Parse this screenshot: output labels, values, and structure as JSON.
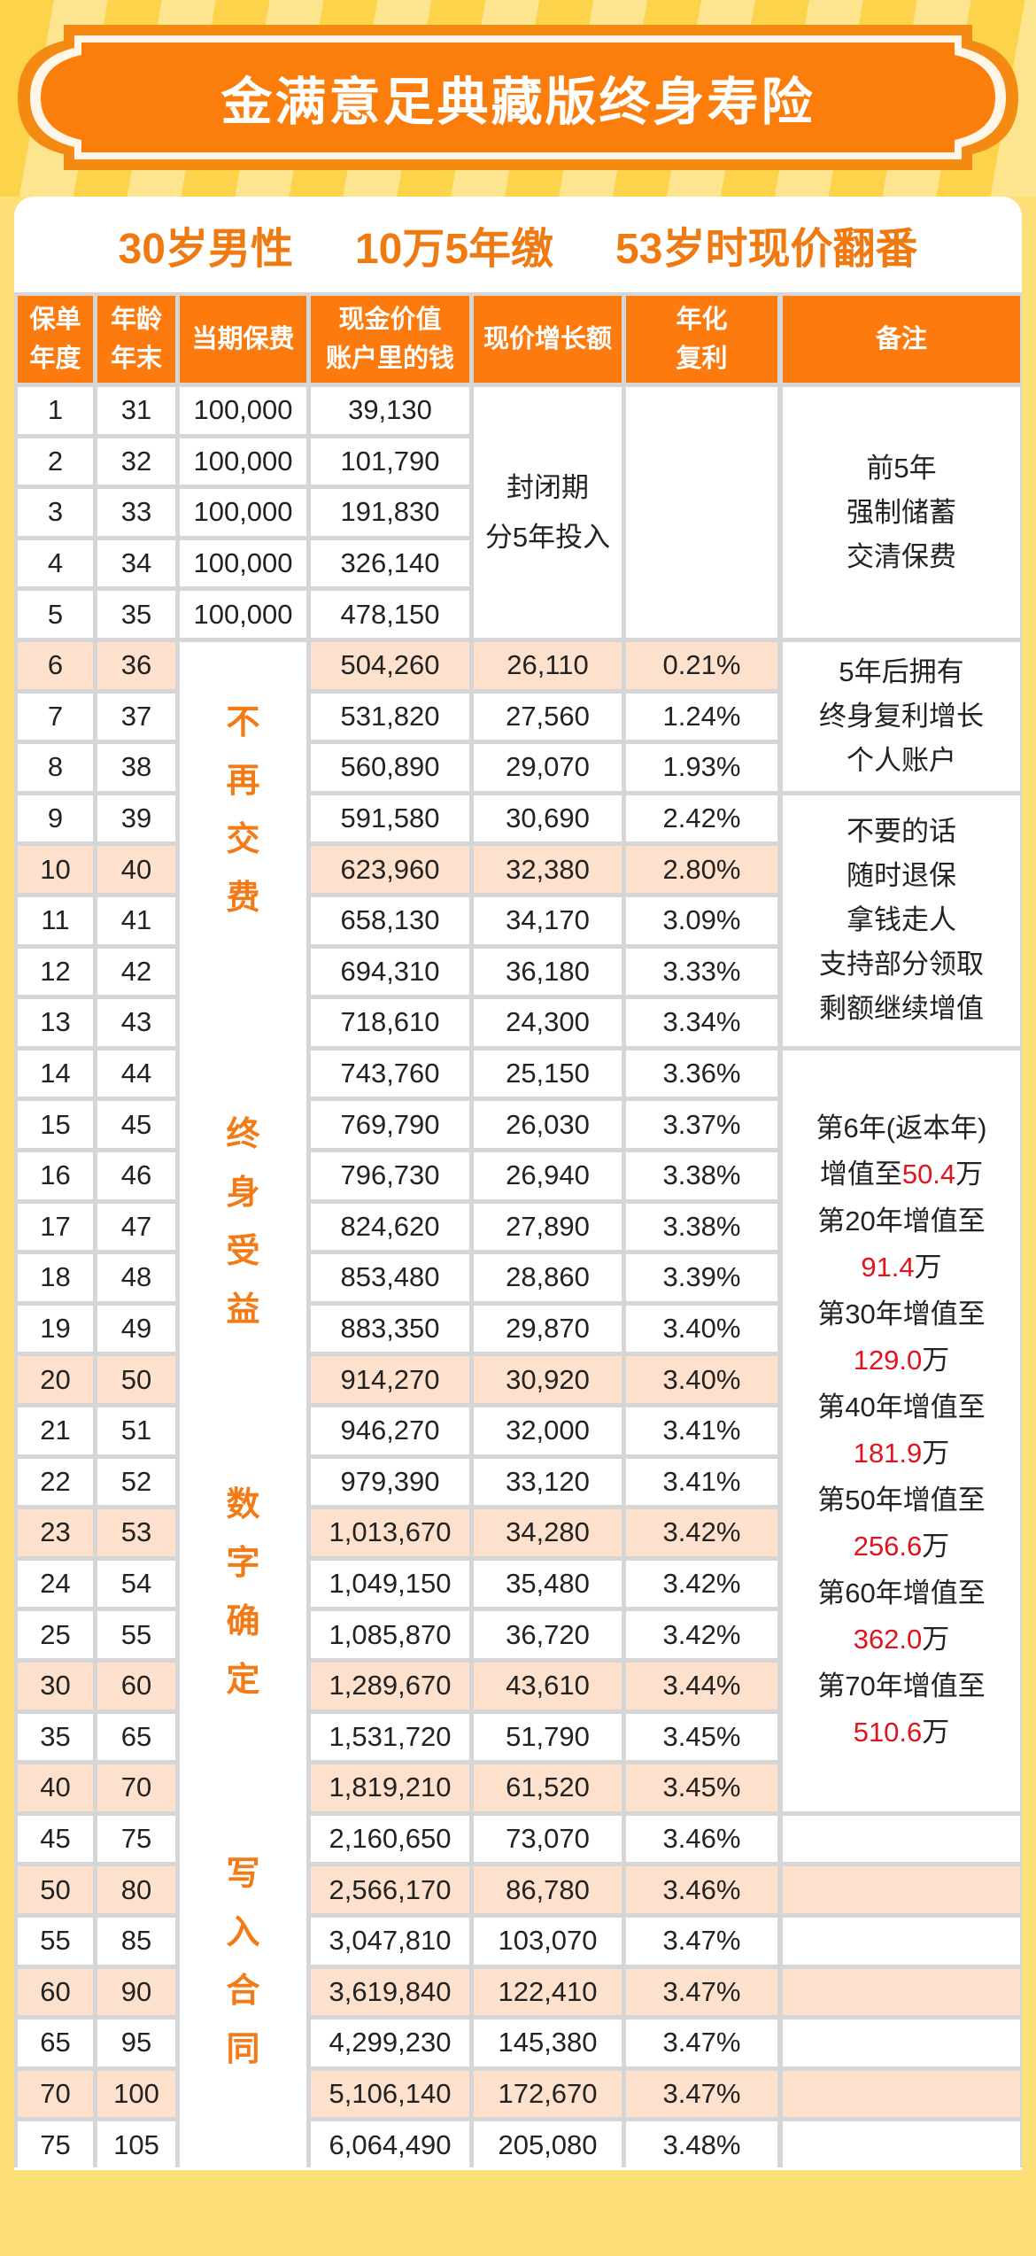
{
  "banner": {
    "title": "金满意足典藏版终身寿险"
  },
  "subtitle": {
    "items": [
      "30岁男性",
      "10万5年缴",
      "53岁时现价翻番"
    ]
  },
  "colors": {
    "accent": "#fd7a0e",
    "highlight_row": "#fde1cc",
    "text_orange": "#f07a12",
    "note_red": "#e0141e",
    "background": "#fde177"
  },
  "table": {
    "headers": [
      "保单\n年度",
      "年龄\n年末",
      "当期保费",
      "现金价值\n账户里的钱",
      "现价增长额",
      "年化\n复利",
      "备注"
    ],
    "rows": [
      {
        "year": "1",
        "age": "31",
        "premium": "100,000",
        "cash": "39,130",
        "growth": "",
        "rate": "",
        "hl": false
      },
      {
        "year": "2",
        "age": "32",
        "premium": "100,000",
        "cash": "101,790",
        "growth": "",
        "rate": "",
        "hl": false
      },
      {
        "year": "3",
        "age": "33",
        "premium": "100,000",
        "cash": "191,830",
        "growth": "",
        "rate": "",
        "hl": false
      },
      {
        "year": "4",
        "age": "34",
        "premium": "100,000",
        "cash": "326,140",
        "growth": "",
        "rate": "",
        "hl": false
      },
      {
        "year": "5",
        "age": "35",
        "premium": "100,000",
        "cash": "478,150",
        "growth": "",
        "rate": "",
        "hl": false
      },
      {
        "year": "6",
        "age": "36",
        "premium": "",
        "cash": "504,260",
        "growth": "26,110",
        "rate": "0.21%",
        "hl": true
      },
      {
        "year": "7",
        "age": "37",
        "premium": "",
        "cash": "531,820",
        "growth": "27,560",
        "rate": "1.24%",
        "hl": false
      },
      {
        "year": "8",
        "age": "38",
        "premium": "",
        "cash": "560,890",
        "growth": "29,070",
        "rate": "1.93%",
        "hl": false
      },
      {
        "year": "9",
        "age": "39",
        "premium": "",
        "cash": "591,580",
        "growth": "30,690",
        "rate": "2.42%",
        "hl": false
      },
      {
        "year": "10",
        "age": "40",
        "premium": "",
        "cash": "623,960",
        "growth": "32,380",
        "rate": "2.80%",
        "hl": true
      },
      {
        "year": "11",
        "age": "41",
        "premium": "",
        "cash": "658,130",
        "growth": "34,170",
        "rate": "3.09%",
        "hl": false
      },
      {
        "year": "12",
        "age": "42",
        "premium": "",
        "cash": "694,310",
        "growth": "36,180",
        "rate": "3.33%",
        "hl": false
      },
      {
        "year": "13",
        "age": "43",
        "premium": "",
        "cash": "718,610",
        "growth": "24,300",
        "rate": "3.34%",
        "hl": false
      },
      {
        "year": "14",
        "age": "44",
        "premium": "",
        "cash": "743,760",
        "growth": "25,150",
        "rate": "3.36%",
        "hl": false
      },
      {
        "year": "15",
        "age": "45",
        "premium": "",
        "cash": "769,790",
        "growth": "26,030",
        "rate": "3.37%",
        "hl": false
      },
      {
        "year": "16",
        "age": "46",
        "premium": "",
        "cash": "796,730",
        "growth": "26,940",
        "rate": "3.38%",
        "hl": false
      },
      {
        "year": "17",
        "age": "47",
        "premium": "",
        "cash": "824,620",
        "growth": "27,890",
        "rate": "3.38%",
        "hl": false
      },
      {
        "year": "18",
        "age": "48",
        "premium": "",
        "cash": "853,480",
        "growth": "28,860",
        "rate": "3.39%",
        "hl": false
      },
      {
        "year": "19",
        "age": "49",
        "premium": "",
        "cash": "883,350",
        "growth": "29,870",
        "rate": "3.40%",
        "hl": false
      },
      {
        "year": "20",
        "age": "50",
        "premium": "",
        "cash": "914,270",
        "growth": "30,920",
        "rate": "3.40%",
        "hl": true
      },
      {
        "year": "21",
        "age": "51",
        "premium": "",
        "cash": "946,270",
        "growth": "32,000",
        "rate": "3.41%",
        "hl": false
      },
      {
        "year": "22",
        "age": "52",
        "premium": "",
        "cash": "979,390",
        "growth": "33,120",
        "rate": "3.41%",
        "hl": false
      },
      {
        "year": "23",
        "age": "53",
        "premium": "",
        "cash": "1,013,670",
        "growth": "34,280",
        "rate": "3.42%",
        "hl": true
      },
      {
        "year": "24",
        "age": "54",
        "premium": "",
        "cash": "1,049,150",
        "growth": "35,480",
        "rate": "3.42%",
        "hl": false
      },
      {
        "year": "25",
        "age": "55",
        "premium": "",
        "cash": "1,085,870",
        "growth": "36,720",
        "rate": "3.42%",
        "hl": false
      },
      {
        "year": "30",
        "age": "60",
        "premium": "",
        "cash": "1,289,670",
        "growth": "43,610",
        "rate": "3.44%",
        "hl": true
      },
      {
        "year": "35",
        "age": "65",
        "premium": "",
        "cash": "1,531,720",
        "growth": "51,790",
        "rate": "3.45%",
        "hl": false
      },
      {
        "year": "40",
        "age": "70",
        "premium": "",
        "cash": "1,819,210",
        "growth": "61,520",
        "rate": "3.45%",
        "hl": true
      },
      {
        "year": "45",
        "age": "75",
        "premium": "",
        "cash": "2,160,650",
        "growth": "73,070",
        "rate": "3.46%",
        "hl": false
      },
      {
        "year": "50",
        "age": "80",
        "premium": "",
        "cash": "2,566,170",
        "growth": "86,780",
        "rate": "3.46%",
        "hl": true
      },
      {
        "year": "55",
        "age": "85",
        "premium": "",
        "cash": "3,047,810",
        "growth": "103,070",
        "rate": "3.47%",
        "hl": false
      },
      {
        "year": "60",
        "age": "90",
        "premium": "",
        "cash": "3,619,840",
        "growth": "122,410",
        "rate": "3.47%",
        "hl": true
      },
      {
        "year": "65",
        "age": "95",
        "premium": "",
        "cash": "4,299,230",
        "growth": "145,380",
        "rate": "3.47%",
        "hl": false
      },
      {
        "year": "70",
        "age": "100",
        "premium": "",
        "cash": "5,106,140",
        "growth": "172,670",
        "rate": "3.47%",
        "hl": true
      },
      {
        "year": "75",
        "age": "105",
        "premium": "",
        "cash": "6,064,490",
        "growth": "205,080",
        "rate": "3.48%",
        "hl": false
      }
    ],
    "lock_period": [
      "封闭期",
      "分5年投入"
    ],
    "vertical_labels": [
      "不再交费",
      "终身受益",
      "数字确定",
      "写入合同"
    ],
    "notes": {
      "first_five": [
        "前5年",
        "强制储蓄",
        "交清保费"
      ],
      "after_five": [
        "5年后拥有",
        "终身复利增长",
        "个人账户"
      ],
      "surrender": [
        "不要的话",
        "随时退保",
        "拿钱走人",
        "支持部分领取",
        "剩额继续增值"
      ],
      "milestones": [
        {
          "label": "第6年(返本年)",
          "prefix": "增值至",
          "value": "50.4",
          "unit": "万",
          "inline": true
        },
        {
          "label": "第20年增值至",
          "value": "91.4",
          "unit": "万"
        },
        {
          "label": "第30年增值至",
          "value": "129.0",
          "unit": "万"
        },
        {
          "label": "第40年增值至",
          "value": "181.9",
          "unit": "万"
        },
        {
          "label": "第50年增值至",
          "value": "256.6",
          "unit": "万"
        },
        {
          "label": "第60年增值至",
          "value": "362.0",
          "unit": "万"
        },
        {
          "label": "第70年增值至",
          "value": "510.6",
          "unit": "万"
        }
      ]
    }
  }
}
